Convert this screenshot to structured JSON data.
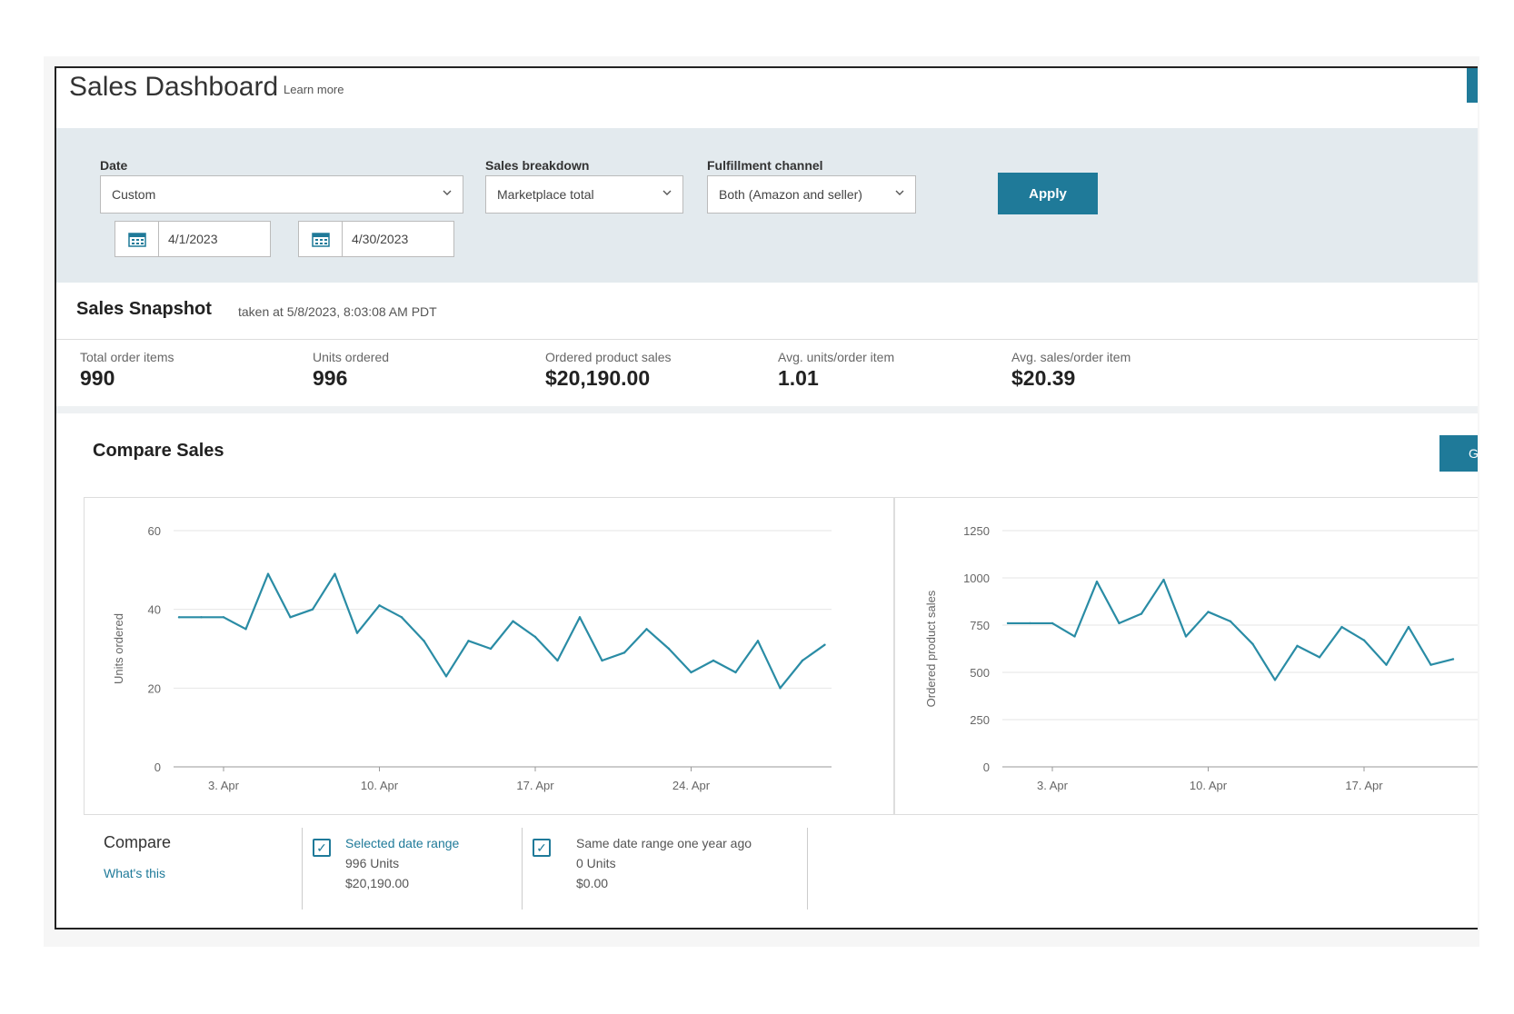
{
  "header": {
    "title": "Sales Dashboard",
    "learn_more": "Learn more"
  },
  "filters": {
    "date_label": "Date",
    "date_value": "Custom",
    "breakdown_label": "Sales breakdown",
    "breakdown_value": "Marketplace total",
    "channel_label": "Fulfillment channel",
    "channel_value": "Both (Amazon and seller)",
    "apply_label": "Apply",
    "start_date": "4/1/2023",
    "end_date": "4/30/2023"
  },
  "snapshot": {
    "title": "Sales Snapshot",
    "taken": "taken at 5/8/2023, 8:03:08 AM PDT",
    "metrics": [
      {
        "label": "Total order items",
        "value": "990"
      },
      {
        "label": "Units ordered",
        "value": "996"
      },
      {
        "label": "Ordered product sales",
        "value": "$20,190.00"
      },
      {
        "label": "Avg. units/order item",
        "value": "1.01"
      },
      {
        "label": "Avg. sales/order item",
        "value": "$20.39"
      }
    ]
  },
  "compare_sales": {
    "title": "Compare Sales",
    "right_button": "G"
  },
  "chart_data": [
    {
      "type": "line",
      "ylabel": "Units ordered",
      "xlabel": "",
      "ylim": [
        0,
        60
      ],
      "yticks": [
        0,
        20,
        40,
        60
      ],
      "xtick_labels": [
        {
          "day": 3,
          "label": "3. Apr"
        },
        {
          "day": 10,
          "label": "10. Apr"
        },
        {
          "day": 17,
          "label": "17. Apr"
        },
        {
          "day": 24,
          "label": "24. Apr"
        }
      ],
      "x": [
        1,
        2,
        3,
        4,
        5,
        6,
        7,
        8,
        9,
        10,
        11,
        12,
        13,
        14,
        15,
        16,
        17,
        18,
        19,
        20,
        21,
        22,
        23,
        24,
        25,
        26,
        27,
        28,
        29,
        30
      ],
      "series": [
        {
          "color": "#2a8ca5",
          "values": [
            38,
            38,
            38,
            35,
            49,
            38,
            40,
            49,
            34,
            41,
            38,
            32,
            23,
            32,
            30,
            37,
            33,
            27,
            38,
            27,
            29,
            35,
            30,
            24,
            27,
            24,
            32,
            20,
            27,
            31
          ]
        }
      ]
    },
    {
      "type": "line",
      "ylabel": "Ordered product sales",
      "xlabel": "",
      "ylim": [
        0,
        1250
      ],
      "yticks": [
        0,
        250,
        500,
        750,
        1000,
        1250
      ],
      "xtick_labels": [
        {
          "day": 3,
          "label": "3. Apr"
        },
        {
          "day": 10,
          "label": "10. Apr"
        },
        {
          "day": 17,
          "label": "17. Apr"
        }
      ],
      "x": [
        1,
        2,
        3,
        4,
        5,
        6,
        7,
        8,
        9,
        10,
        11,
        12,
        13,
        14,
        15,
        16,
        17,
        18,
        19,
        20,
        21
      ],
      "series": [
        {
          "color": "#2a8ca5",
          "values": [
            760,
            760,
            760,
            690,
            980,
            760,
            810,
            990,
            690,
            820,
            770,
            650,
            460,
            640,
            580,
            740,
            670,
            540,
            740,
            540,
            570
          ]
        }
      ]
    }
  ],
  "compare": {
    "label": "Compare",
    "link": "What's this",
    "items": [
      {
        "title": "Selected date range",
        "units": "996 Units",
        "sales": "$20,190.00",
        "checked": true
      },
      {
        "title": "Same date range one year ago",
        "units": "0 Units",
        "sales": "$0.00",
        "checked": true
      }
    ]
  },
  "colors": {
    "accent": "#1f7a99",
    "line": "#2a8ca5",
    "filter_bg": "#e3eaee"
  }
}
